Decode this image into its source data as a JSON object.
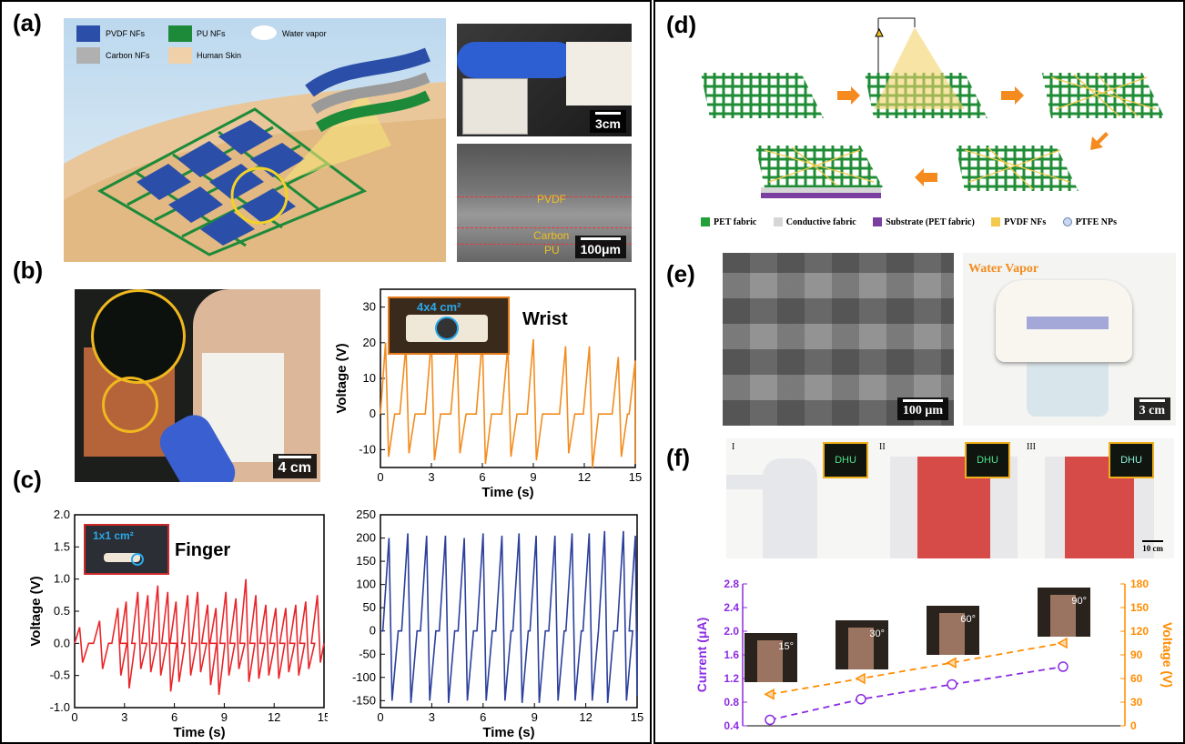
{
  "panels": {
    "a": "(a)",
    "b": "(b)",
    "c": "(c)",
    "d": "(d)",
    "e": "(e)",
    "f": "(f)"
  },
  "panel_a": {
    "legend": [
      "PVDF NFs",
      "PU NFs",
      "Water vapor",
      "Carbon NFs",
      "Human Skin"
    ],
    "scale_top": "3cm",
    "scale_sem": "100μm",
    "sem_labels": [
      "PVDF",
      "Carbon",
      "PU"
    ]
  },
  "panel_b": {
    "scale": "4 cm",
    "inset_area": "4x4 cm²",
    "inset_label": "Wrist"
  },
  "panel_c": {
    "inset_area": "1x1 cm²",
    "inset_label": "Finger"
  },
  "panel_d": {
    "legend": [
      {
        "label": "PET fabric",
        "color": "#22a03a"
      },
      {
        "label": "Conductive fabric",
        "color": "#d6d6d6"
      },
      {
        "label": "Substrate (PET fabric)",
        "color": "#7b3fa0"
      },
      {
        "label": "PVDF NFs",
        "color": "#f2c94c"
      },
      {
        "label": "PTFE NPs",
        "color": "#c9d8f0"
      }
    ]
  },
  "panel_e": {
    "scale_sem": "100 μm",
    "scale_photo": "3 cm",
    "vapor_label": "Water Vapor"
  },
  "panel_f": {
    "photo_labels": [
      "I",
      "II",
      "III"
    ],
    "display_text": "DHU",
    "scale": "10 cm",
    "angles": [
      "15°",
      "30°",
      "60°",
      "90°"
    ]
  },
  "chart_data": [
    {
      "id": "wrist",
      "type": "line",
      "xlabel": "Time (s)",
      "ylabel": "Voltage (V)",
      "xlim": [
        0,
        15
      ],
      "ylim": [
        -15,
        35
      ],
      "xticks": [
        "0",
        "3",
        "6",
        "9",
        "12",
        "15"
      ],
      "yticks": [
        "-10",
        "0",
        "10",
        "20",
        "30"
      ],
      "color": "#f28c1e",
      "peaks_x": [
        0.3,
        1.5,
        3.0,
        4.5,
        6.0,
        7.5,
        9.0,
        10.9,
        12.3,
        14.0,
        15.0
      ],
      "peaks_pos": [
        20,
        19,
        21,
        20,
        21,
        19,
        21,
        19,
        19,
        16,
        15
      ],
      "peaks_neg": [
        -12,
        -11,
        -13,
        -11,
        -14,
        -12,
        -13,
        -11,
        -15,
        -12,
        -14
      ]
    },
    {
      "id": "finger",
      "type": "line",
      "xlabel": "Time (s)",
      "ylabel": "Voltage (V)",
      "xlim": [
        0,
        15
      ],
      "ylim": [
        -1.0,
        2.0
      ],
      "xticks": [
        "0",
        "3",
        "6",
        "9",
        "12",
        "15"
      ],
      "yticks": [
        "-1.0",
        "-0.5",
        "0.0",
        "0.5",
        "1.0",
        "1.5",
        "2.0"
      ],
      "color": "#e8262a",
      "peaks_x": [
        0.3,
        1.5,
        2.6,
        3.1,
        3.8,
        4.4,
        5.0,
        5.6,
        6.1,
        6.8,
        7.4,
        8.0,
        8.5,
        9.1,
        9.7,
        10.3,
        10.9,
        11.5,
        12.1,
        12.7,
        13.3,
        13.9,
        14.6
      ],
      "peaks_pos": [
        0.25,
        0.35,
        0.55,
        0.65,
        0.8,
        0.75,
        0.9,
        0.8,
        0.65,
        0.75,
        0.8,
        0.6,
        0.55,
        0.8,
        0.7,
        1.0,
        0.75,
        0.6,
        0.55,
        0.55,
        0.6,
        0.65,
        0.75
      ],
      "peaks_neg": [
        -0.3,
        -0.4,
        -0.5,
        -0.7,
        -0.4,
        -0.45,
        -0.5,
        -0.75,
        -0.6,
        -0.5,
        -0.45,
        -0.65,
        -0.8,
        -0.5,
        -0.4,
        -0.6,
        -0.55,
        -0.5,
        -0.55,
        -0.45,
        -0.5,
        -0.4,
        -0.3
      ]
    },
    {
      "id": "blue",
      "type": "line",
      "xlabel": "Time (s)",
      "ylabel": "",
      "xlim": [
        0,
        15
      ],
      "ylim": [
        -165,
        250
      ],
      "xticks": [
        "0",
        "3",
        "6",
        "9",
        "12",
        "15"
      ],
      "yticks": [
        "-150",
        "-100",
        "-50",
        "0",
        "50",
        "100",
        "150",
        "200",
        "250"
      ],
      "color": "#2c3f9c",
      "peaks_x": [
        0.5,
        1.6,
        2.7,
        3.8,
        4.9,
        6.0,
        7.1,
        8.1,
        9.1,
        10.2,
        11.2,
        12.2,
        13.1,
        14.2,
        14.9
      ],
      "peaks_pos": [
        200,
        210,
        205,
        205,
        200,
        210,
        205,
        210,
        205,
        205,
        210,
        210,
        215,
        215,
        205
      ],
      "peaks_neg": [
        -150,
        -155,
        -150,
        -155,
        -150,
        -150,
        -150,
        -155,
        -155,
        -150,
        -150,
        -150,
        -155,
        -150,
        -140
      ]
    },
    {
      "id": "angle",
      "type": "scatter",
      "xlabel": "",
      "ylabel_left": "Current (μA)",
      "ylabel_right": "Voltage (V)",
      "ylim_left": [
        0.4,
        2.8
      ],
      "ylim_right": [
        0,
        180
      ],
      "yticks_left": [
        "0.4",
        "0.8",
        "1.2",
        "1.6",
        "2.0",
        "2.4",
        "2.8"
      ],
      "yticks_right": [
        "0",
        "30",
        "60",
        "90",
        "120",
        "150",
        "180"
      ],
      "categories": [
        "15°",
        "30°",
        "60°",
        "90°"
      ],
      "series": [
        {
          "axis": "left",
          "color": "#8a2be2",
          "values": [
            0.5,
            0.85,
            1.1,
            1.4
          ]
        },
        {
          "axis": "right",
          "color": "#ff8c00",
          "values": [
            40,
            60,
            80,
            105
          ]
        }
      ]
    }
  ]
}
